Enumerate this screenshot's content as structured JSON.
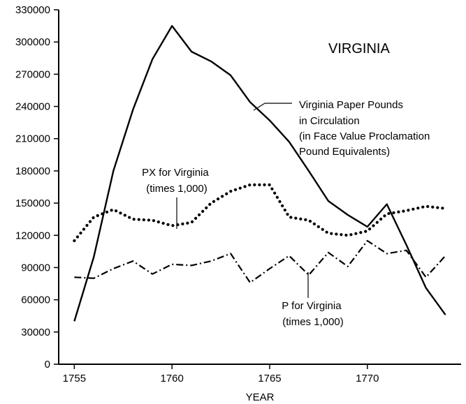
{
  "chart_data": {
    "type": "line",
    "title": "VIRGINIA",
    "xlabel": "YEAR",
    "ylabel": "",
    "xlim": [
      1754.2,
      1774.8
    ],
    "ylim": [
      0,
      330000
    ],
    "x_ticks": [
      1755,
      1760,
      1765,
      1770
    ],
    "y_ticks": [
      0,
      30000,
      60000,
      90000,
      120000,
      150000,
      180000,
      210000,
      240000,
      270000,
      300000,
      330000
    ],
    "x_tick_labels": [
      "1755",
      "1760",
      "1765",
      "1770"
    ],
    "y_tick_labels": [
      "0",
      "30000",
      "60000",
      "90000",
      "120000",
      "150000",
      "180000",
      "210000",
      "240000",
      "270000",
      "300000",
      "330000"
    ],
    "grid": false,
    "series": [
      {
        "key": "paper",
        "style": "solid",
        "color": "#000000",
        "x": [
          1755,
          1756,
          1757,
          1758,
          1759,
          1760,
          1761,
          1762,
          1763,
          1764,
          1765,
          1766,
          1767,
          1768,
          1769,
          1770,
          1771,
          1772,
          1773,
          1774
        ],
        "values": [
          40000,
          100000,
          180000,
          237000,
          284000,
          315000,
          291000,
          282000,
          269000,
          244000,
          227000,
          207000,
          180000,
          152000,
          139000,
          128000,
          149000,
          111000,
          71000,
          46000
        ]
      },
      {
        "key": "px",
        "style": "dotted",
        "color": "#000000",
        "x": [
          1755,
          1756,
          1757,
          1758,
          1759,
          1760,
          1761,
          1762,
          1763,
          1764,
          1765,
          1766,
          1767,
          1768,
          1769,
          1770,
          1771,
          1772,
          1773,
          1774
        ],
        "values": [
          115000,
          137000,
          144000,
          135000,
          134000,
          129000,
          132000,
          150000,
          161000,
          167000,
          167000,
          137000,
          134000,
          122000,
          120000,
          124000,
          140000,
          143000,
          147000,
          145000
        ]
      },
      {
        "key": "p",
        "style": "dash-dot",
        "color": "#000000",
        "x": [
          1755,
          1756,
          1757,
          1758,
          1759,
          1760,
          1761,
          1762,
          1763,
          1764,
          1765,
          1766,
          1767,
          1768,
          1769,
          1770,
          1771,
          1772,
          1773,
          1774
        ],
        "values": [
          81000,
          80000,
          89000,
          96000,
          84000,
          93000,
          92000,
          96000,
          103000,
          76000,
          89000,
          101000,
          83000,
          104000,
          91000,
          115000,
          103000,
          106000,
          81000,
          101000
        ]
      }
    ],
    "annotations": [
      {
        "key": "paper_label",
        "lines": [
          "Virginia Paper Pounds",
          "in Circulation",
          "(in Face Value Proclamation",
          "Pound Equivalents)"
        ]
      },
      {
        "key": "px_label",
        "lines": [
          "PX for Virginia",
          "(times 1,000)"
        ]
      },
      {
        "key": "p_label",
        "lines": [
          "P for Virginia",
          "(times 1,000)"
        ]
      }
    ]
  }
}
